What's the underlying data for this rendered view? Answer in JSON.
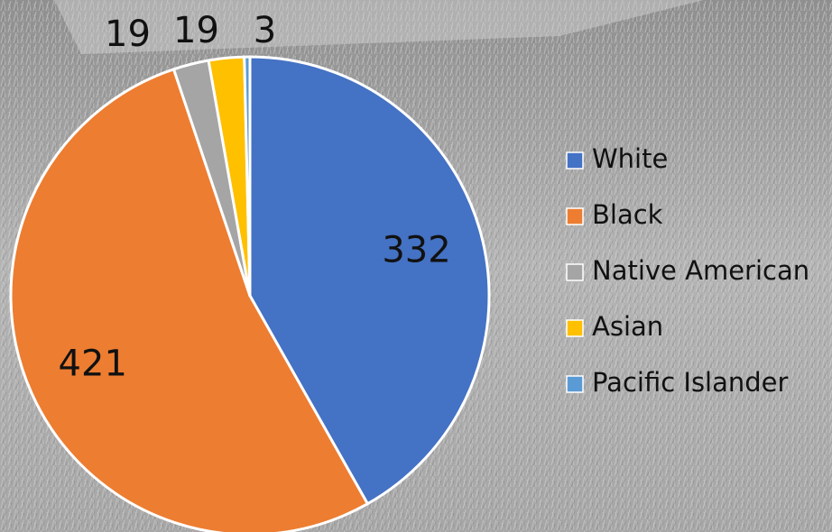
{
  "chart_data": {
    "type": "pie",
    "categories": [
      "White",
      "Black",
      "Native American",
      "Asian",
      "Pacific Islander"
    ],
    "values": [
      332,
      421,
      19,
      19,
      3
    ],
    "colors": [
      "#4472c4",
      "#ed7d31",
      "#a5a5a5",
      "#ffc000",
      "#5b9bd5"
    ],
    "legend": "right"
  }
}
